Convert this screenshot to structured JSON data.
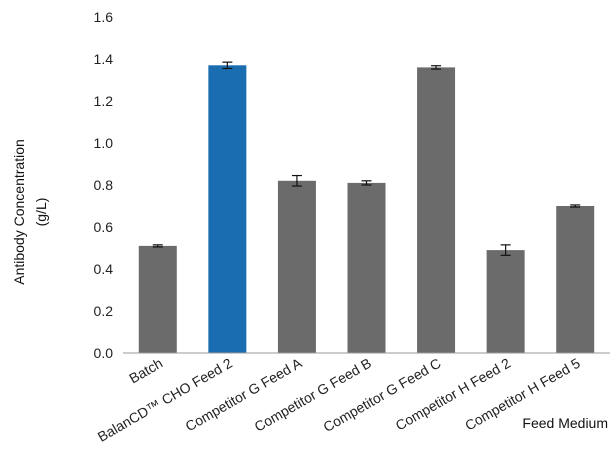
{
  "chart_data": {
    "type": "bar",
    "title": "",
    "xlabel": "Feed Medium",
    "ylabel_line1": "Antibody Concentration",
    "ylabel_line2": "(g/L)",
    "ylim": [
      0,
      1.6
    ],
    "yticks": [
      "0.0",
      "0.2",
      "0.4",
      "0.6",
      "0.8",
      "1.0",
      "1.2",
      "1.4",
      "1.6"
    ],
    "grid": false,
    "legend": "none",
    "categories": [
      "Batch",
      "BalanCD™ CHO Feed 2",
      "Competitor G Feed A",
      "Competitor G Feed B",
      "Competitor G Feed C",
      "Competitor H Feed 2",
      "Competitor H Feed 5"
    ],
    "values": [
      0.51,
      1.37,
      0.82,
      0.81,
      1.36,
      0.49,
      0.7
    ],
    "errors": [
      0.005,
      0.015,
      0.025,
      0.01,
      0.008,
      0.025,
      0.005
    ],
    "colors": [
      "#6b6b6b",
      "#1a6db0",
      "#6b6b6b",
      "#6b6b6b",
      "#6b6b6b",
      "#6b6b6b",
      "#6b6b6b"
    ],
    "axis_color": "#9a9a9a"
  }
}
